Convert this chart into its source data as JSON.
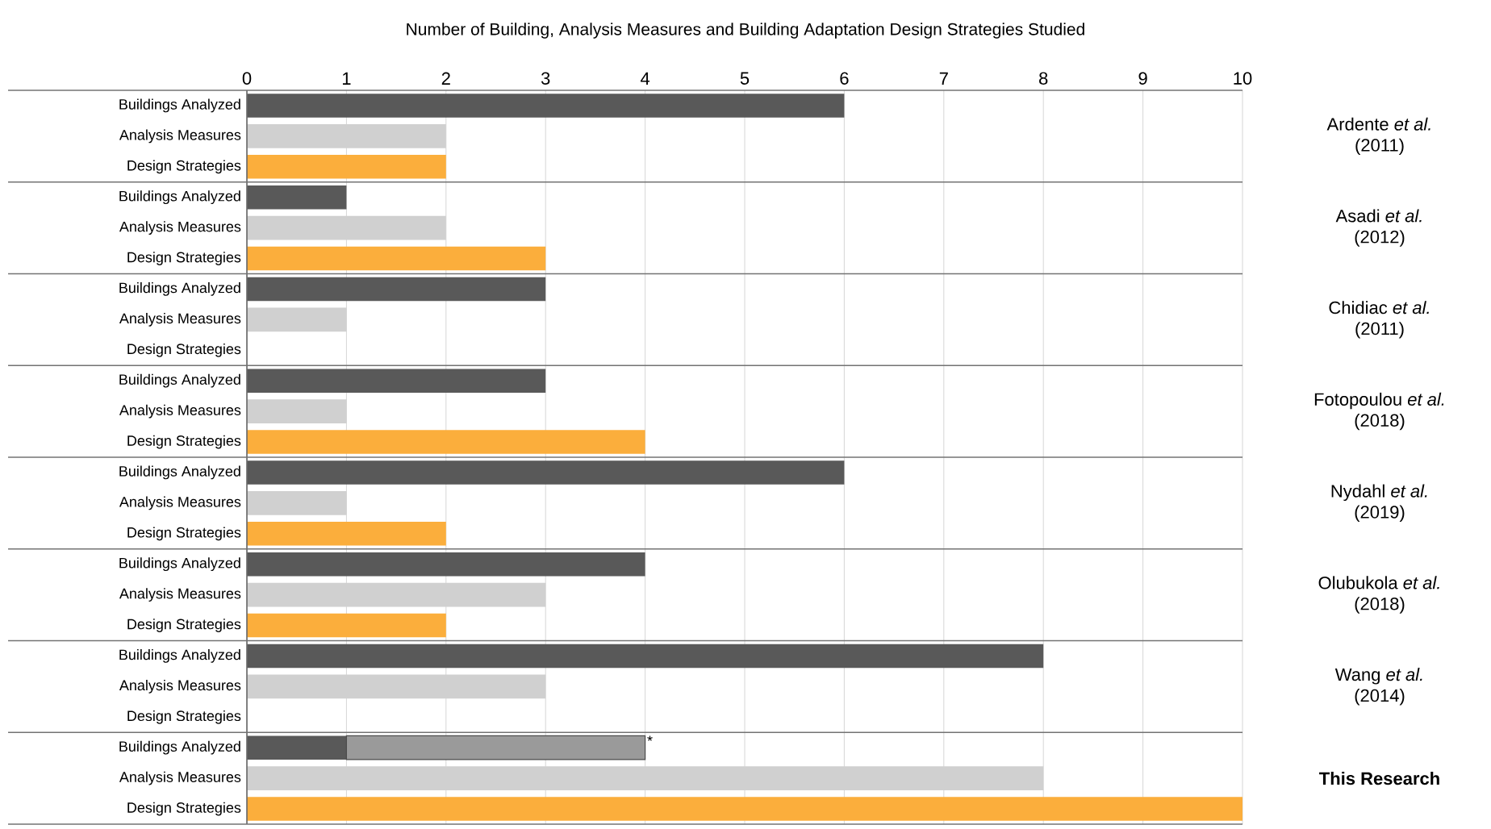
{
  "chart_data": {
    "type": "bar",
    "orientation": "horizontal",
    "stacked": true,
    "title": "Number of Building, Analysis Measures and Building Adaptation Design Strategies Studied",
    "categories": [
      "Buildings Analyzed",
      "Analysis Measures",
      "Design Strategies",
      "Buildings Analyzed",
      "Analysis Measures",
      "Design Strategies",
      "Buildings Analyzed",
      "Analysis Measures",
      "Design Strategies",
      "Buildings Analyzed",
      "Analysis Measures",
      "Design Strategies",
      "Buildings Analyzed",
      "Analysis Measures",
      "Design Strategies",
      "Buildings Analyzed",
      "Analysis Measures",
      "Design Strategies",
      "Buildings Analyzed",
      "Analysis Measures",
      "Design Strategies",
      "Buildings Analyzed",
      "Analysis Measures",
      "Design Strategies"
    ],
    "series": [
      {
        "values": [
          6,
          2,
          2,
          1,
          2,
          3,
          3,
          1,
          null,
          3,
          1,
          4,
          6,
          1,
          2,
          4,
          3,
          2,
          8,
          3,
          null,
          1,
          8,
          10
        ],
        "colors": [
          "#595959",
          "#d0d0d0",
          "#fbae3c",
          "#595959",
          "#d0d0d0",
          "#fbae3c",
          "#595959",
          "#d0d0d0",
          "#fbae3c",
          "#595959",
          "#d0d0d0",
          "#fbae3c",
          "#595959",
          "#d0d0d0",
          "#fbae3c",
          "#595959",
          "#d0d0d0",
          "#fbae3c",
          "#595959",
          "#d0d0d0",
          "#fbae3c",
          "#595959",
          "#d0d0d0",
          "#fbae3c"
        ]
      },
      {
        "values": [
          null,
          null,
          null,
          null,
          null,
          null,
          null,
          null,
          null,
          null,
          null,
          null,
          null,
          null,
          null,
          null,
          null,
          null,
          null,
          null,
          null,
          3,
          null,
          null
        ],
        "color": "#9a9a9a",
        "value_labels": [
          null,
          null,
          null,
          null,
          null,
          null,
          null,
          null,
          null,
          null,
          null,
          null,
          null,
          null,
          null,
          null,
          null,
          null,
          null,
          null,
          null,
          "*",
          null,
          null
        ]
      }
    ],
    "xlim": [
      0,
      10
    ],
    "xticks": [
      0,
      1,
      2,
      3,
      4,
      5,
      6,
      7,
      8,
      9,
      10
    ],
    "grid": "x",
    "annotations": [
      "Ardente *et al.* (2011)",
      "Asadi *et al.* (2012)",
      "Chidiac *et al.* (2011)",
      "Fotopoulou *et al.* (2018)",
      "Nydahl *et al.* (2019)",
      "Olubukola *et al.* (2018)",
      "Wang *et al.* (2014)",
      "**This Research**"
    ]
  }
}
